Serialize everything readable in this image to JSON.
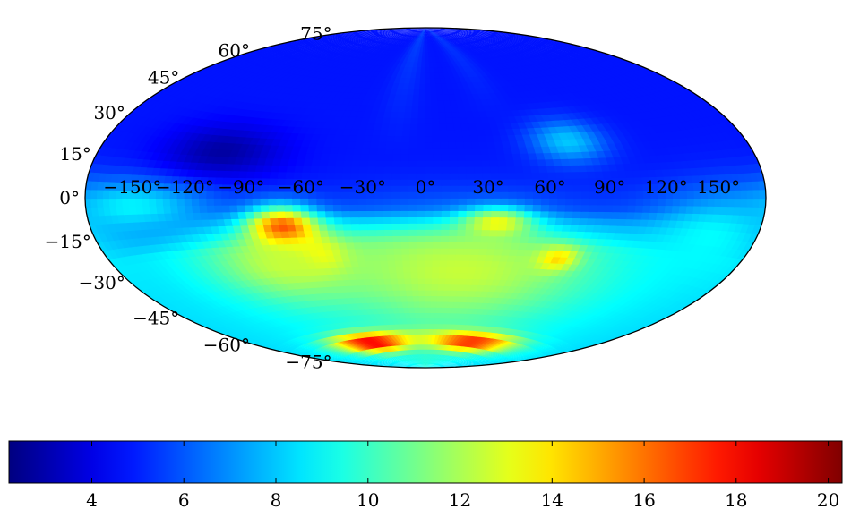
{
  "chart_data": {
    "type": "heatmap",
    "projection": "hammer",
    "title": "",
    "xlabel": "",
    "ylabel": "",
    "colormap": "jet",
    "colorbar": {
      "range": [
        2.2,
        20.3
      ],
      "ticks": [
        4,
        6,
        8,
        10,
        12,
        14,
        16,
        18,
        20
      ],
      "tick_labels": [
        "4",
        "6",
        "8",
        "10",
        "12",
        "14",
        "16",
        "18",
        "20"
      ],
      "placement": "bottom"
    },
    "longitude_ticks": [
      -150,
      -120,
      -90,
      -60,
      -30,
      0,
      30,
      60,
      90,
      120,
      150
    ],
    "longitude_tick_labels": [
      "−150°",
      "−120°",
      "−90°",
      "−60°",
      "−30°",
      "0°",
      "30°",
      "60°",
      "90°",
      "120°",
      "150°"
    ],
    "latitude_ticks": [
      75,
      60,
      45,
      30,
      15,
      0,
      -15,
      -30,
      -45,
      -60,
      -75
    ],
    "latitude_tick_labels": [
      "75°",
      "60°",
      "45°",
      "30°",
      "15°",
      "0°",
      "−15°",
      "−30°",
      "−45°",
      "−60°",
      "−75°"
    ],
    "grid": false,
    "background_value": 4.8,
    "features": [
      {
        "lon": -105,
        "lat": 20,
        "sigma_lon": 22,
        "sigma_lat": 8,
        "value": 2.8
      },
      {
        "lon": 75,
        "lat": 26,
        "sigma_lon": 14,
        "sigma_lat": 7,
        "value": 8.0
      },
      {
        "lon": -150,
        "lat": -3,
        "sigma_lon": 30,
        "sigma_lat": 7,
        "value": 8.8
      },
      {
        "lon": -70,
        "lat": -15,
        "sigma_lon": 12,
        "sigma_lat": 7,
        "value": 20.0
      },
      {
        "lon": -58,
        "lat": -27,
        "sigma_lon": 10,
        "sigma_lat": 5,
        "value": 17.0
      },
      {
        "lon": -75,
        "lat": -30,
        "sigma_lon": 30,
        "sigma_lat": 12,
        "value": 12.5
      },
      {
        "lon": 35,
        "lat": -12,
        "sigma_lon": 12,
        "sigma_lat": 5,
        "value": 14.0
      },
      {
        "lon": 70,
        "lat": -28,
        "sigma_lon": 8,
        "sigma_lat": 4,
        "value": 16.5
      },
      {
        "lon": 20,
        "lat": -35,
        "sigma_lon": 50,
        "sigma_lat": 18,
        "value": 12.5
      },
      {
        "lon": -70,
        "lat": -72,
        "sigma_lon": 35,
        "sigma_lat": 4,
        "value": 18.5
      },
      {
        "lon": 60,
        "lat": -72,
        "sigma_lon": 40,
        "sigma_lat": 4,
        "value": 17.5
      },
      {
        "lon": 150,
        "lat": -15,
        "sigma_lon": 30,
        "sigma_lat": 12,
        "value": 9.0
      }
    ]
  }
}
